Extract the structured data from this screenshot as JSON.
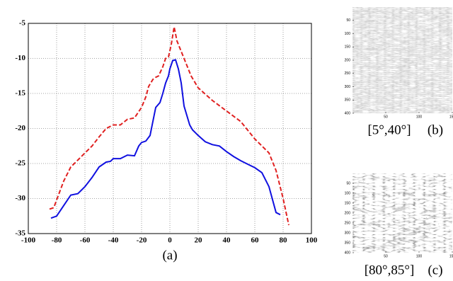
{
  "chart_data": [
    {
      "type": "line",
      "xlabel": "(a)",
      "xlim": [
        -100,
        100
      ],
      "xticks": [
        -100,
        -80,
        -60,
        -40,
        -20,
        0,
        20,
        40,
        60,
        80,
        100
      ],
      "ylim": [
        -35,
        -5
      ],
      "yticks": [
        -35,
        -30,
        -25,
        -20,
        -15,
        -10,
        -5
      ],
      "grid": true,
      "series": [
        {
          "color": "#1010e0",
          "style": "solid",
          "x": [
            -84,
            -80,
            -75,
            -70,
            -65,
            -60,
            -55,
            -50,
            -45,
            -42,
            -40,
            -35,
            -30,
            -25,
            -22,
            -20,
            -17,
            -14,
            -12,
            -10,
            -7,
            -5,
            -3,
            -1,
            0,
            2,
            4,
            6,
            8,
            10,
            14,
            16,
            20,
            25,
            30,
            35,
            40,
            45,
            50,
            55,
            60,
            65,
            70,
            75,
            78
          ],
          "values": [
            -32.8,
            -32.5,
            -31,
            -29.5,
            -29.3,
            -28.3,
            -27,
            -25.5,
            -24.8,
            -24.7,
            -24.3,
            -24.3,
            -23.8,
            -23.9,
            -22.5,
            -22,
            -21.8,
            -21,
            -19,
            -17,
            -16.3,
            -15,
            -13.5,
            -12.5,
            -11.5,
            -10.3,
            -10.2,
            -11.5,
            -13.5,
            -16.8,
            -19.5,
            -20.2,
            -21,
            -21.9,
            -22.3,
            -22.5,
            -23.3,
            -24,
            -24.6,
            -25.1,
            -25.6,
            -26.3,
            -28.3,
            -32,
            -32.3
          ]
        },
        {
          "color": "#e02020",
          "style": "dashed",
          "x": [
            -85,
            -82,
            -80,
            -75,
            -70,
            -65,
            -60,
            -55,
            -50,
            -45,
            -40,
            -35,
            -30,
            -25,
            -20,
            -17,
            -15,
            -12,
            -10,
            -8,
            -5,
            -3,
            -1,
            1,
            3,
            5,
            8,
            10,
            15,
            20,
            30,
            40,
            50,
            60,
            70,
            75,
            80,
            84
          ],
          "values": [
            -31.5,
            -31.3,
            -30.2,
            -27.5,
            -25.5,
            -24.5,
            -23.5,
            -22.5,
            -21.2,
            -20,
            -19.5,
            -19.5,
            -18.7,
            -18.5,
            -17,
            -15.5,
            -14,
            -13,
            -12.7,
            -12.5,
            -11.2,
            -10,
            -9.8,
            -8,
            -5.5,
            -7.5,
            -9,
            -10,
            -12.5,
            -14.2,
            -16,
            -17.5,
            -19,
            -21.5,
            -23.5,
            -26,
            -30,
            -33.8
          ]
        }
      ]
    },
    {
      "type": "image",
      "caption": "[5°,40°]",
      "label": "(b)",
      "xlim": [
        0,
        150
      ],
      "xticks": [
        50,
        100,
        150
      ],
      "ylim": [
        0,
        400
      ],
      "yticks": [
        50,
        100,
        150,
        200,
        250,
        300,
        350,
        400
      ]
    },
    {
      "type": "image",
      "caption": "[80°,85°]",
      "label": "(c)",
      "xlim": [
        0,
        150
      ],
      "xticks": [
        50,
        100,
        150
      ],
      "ylim": [
        0,
        400
      ],
      "yticks": [
        50,
        100,
        150,
        200,
        250,
        300,
        350,
        400
      ]
    }
  ]
}
